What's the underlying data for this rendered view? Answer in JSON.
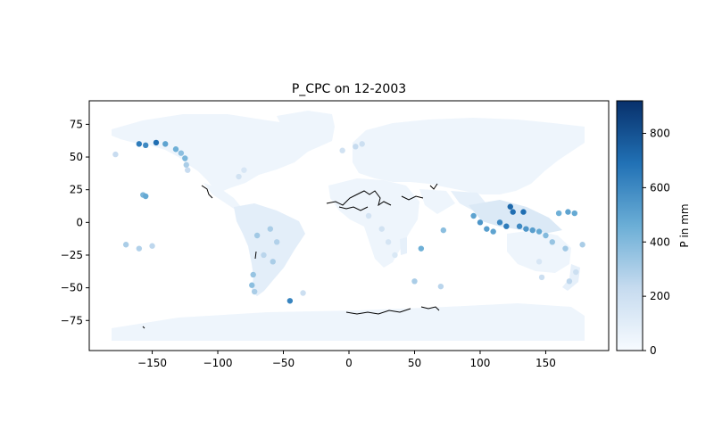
{
  "chart_data": {
    "type": "scatter",
    "title": "P_CPC on 12-2003",
    "xlabel": "",
    "ylabel": "",
    "xlim": [
      -198,
      198
    ],
    "ylim": [
      -98,
      93
    ],
    "xticks": [
      -150,
      -100,
      -50,
      0,
      50,
      100,
      150
    ],
    "yticks": [
      75,
      50,
      25,
      0,
      -25,
      -50,
      -75
    ],
    "grid": false,
    "colormap": "Blues",
    "colorbar": {
      "label": "P in mm",
      "range": [
        0,
        920
      ],
      "ticks": [
        0,
        200,
        400,
        600,
        800
      ],
      "color_low": "#f7fbff",
      "color_mid": "#6baed6",
      "color_high": "#08306b"
    },
    "land_color": "#eef5fc",
    "coast_color": "#000000",
    "points": [
      {
        "lon": -160,
        "lat": 60,
        "p": 650
      },
      {
        "lon": -155,
        "lat": 59,
        "p": 600
      },
      {
        "lon": -147,
        "lat": 61,
        "p": 700
      },
      {
        "lon": -140,
        "lat": 60,
        "p": 500
      },
      {
        "lon": -132,
        "lat": 56,
        "p": 450
      },
      {
        "lon": -128,
        "lat": 53,
        "p": 380
      },
      {
        "lon": -125,
        "lat": 49,
        "p": 420
      },
      {
        "lon": -124,
        "lat": 44,
        "p": 300
      },
      {
        "lon": -123,
        "lat": 40,
        "p": 220
      },
      {
        "lon": -84,
        "lat": 35,
        "p": 180
      },
      {
        "lon": -80,
        "lat": 40,
        "p": 150
      },
      {
        "lon": -157,
        "lat": 21,
        "p": 420
      },
      {
        "lon": -155,
        "lat": 20,
        "p": 480
      },
      {
        "lon": -70,
        "lat": -10,
        "p": 320
      },
      {
        "lon": -60,
        "lat": -5,
        "p": 300
      },
      {
        "lon": -55,
        "lat": -15,
        "p": 280
      },
      {
        "lon": -65,
        "lat": -25,
        "p": 260
      },
      {
        "lon": -58,
        "lat": -30,
        "p": 300
      },
      {
        "lon": -73,
        "lat": -40,
        "p": 350
      },
      {
        "lon": -74,
        "lat": -48,
        "p": 380
      },
      {
        "lon": -72,
        "lat": -53,
        "p": 300
      },
      {
        "lon": -45,
        "lat": -60,
        "p": 620
      },
      {
        "lon": -35,
        "lat": -54,
        "p": 200
      },
      {
        "lon": 10,
        "lat": 60,
        "p": 200
      },
      {
        "lon": 5,
        "lat": 58,
        "p": 230
      },
      {
        "lon": -5,
        "lat": 55,
        "p": 180
      },
      {
        "lon": 95,
        "lat": 5,
        "p": 500
      },
      {
        "lon": 100,
        "lat": 0,
        "p": 550
      },
      {
        "lon": 105,
        "lat": -5,
        "p": 520
      },
      {
        "lon": 110,
        "lat": -7,
        "p": 500
      },
      {
        "lon": 115,
        "lat": 0,
        "p": 600
      },
      {
        "lon": 120,
        "lat": -3,
        "p": 650
      },
      {
        "lon": 125,
        "lat": 8,
        "p": 700
      },
      {
        "lon": 123,
        "lat": 12,
        "p": 720
      },
      {
        "lon": 130,
        "lat": -3,
        "p": 600
      },
      {
        "lon": 135,
        "lat": -5,
        "p": 550
      },
      {
        "lon": 140,
        "lat": -6,
        "p": 520
      },
      {
        "lon": 145,
        "lat": -7,
        "p": 480
      },
      {
        "lon": 133,
        "lat": 8,
        "p": 700
      },
      {
        "lon": 160,
        "lat": 7,
        "p": 450
      },
      {
        "lon": 167,
        "lat": 8,
        "p": 500
      },
      {
        "lon": 172,
        "lat": 7,
        "p": 480
      },
      {
        "lon": 150,
        "lat": -10,
        "p": 400
      },
      {
        "lon": 155,
        "lat": -15,
        "p": 350
      },
      {
        "lon": 165,
        "lat": -20,
        "p": 320
      },
      {
        "lon": 178,
        "lat": -17,
        "p": 300
      },
      {
        "lon": 145,
        "lat": -30,
        "p": 150
      },
      {
        "lon": 147,
        "lat": -42,
        "p": 200
      },
      {
        "lon": 168,
        "lat": -45,
        "p": 250
      },
      {
        "lon": 173,
        "lat": -38,
        "p": 200
      },
      {
        "lon": 55,
        "lat": -20,
        "p": 450
      },
      {
        "lon": 72,
        "lat": -6,
        "p": 380
      },
      {
        "lon": 50,
        "lat": -45,
        "p": 300
      },
      {
        "lon": 70,
        "lat": -49,
        "p": 260
      },
      {
        "lon": -170,
        "lat": -17,
        "p": 300
      },
      {
        "lon": -160,
        "lat": -20,
        "p": 280
      },
      {
        "lon": -150,
        "lat": -18,
        "p": 250
      },
      {
        "lon": -178,
        "lat": 52,
        "p": 220
      },
      {
        "lon": 25,
        "lat": -5,
        "p": 180
      },
      {
        "lon": 30,
        "lat": -15,
        "p": 160
      },
      {
        "lon": 35,
        "lat": -25,
        "p": 140
      },
      {
        "lon": 15,
        "lat": 5,
        "p": 170
      }
    ]
  },
  "colors": {
    "axes": "#000000",
    "background": "#ffffff"
  }
}
